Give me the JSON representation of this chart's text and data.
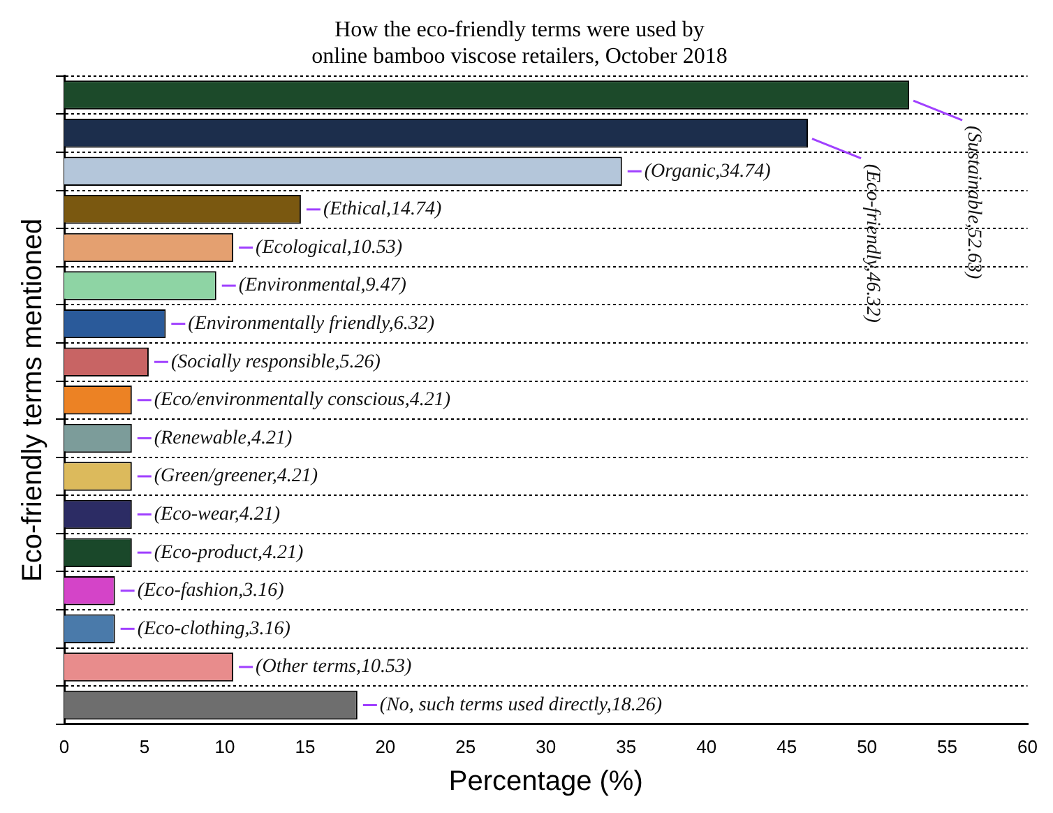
{
  "chart_data": {
    "type": "bar",
    "orientation": "horizontal",
    "title": "How the eco-friendly terms were used by\nonline bamboo viscose retailers, October 2018",
    "xlabel": "Percentage (%)",
    "ylabel": "Eco-friendly terms mentioned",
    "categories": [
      null,
      null,
      null,
      null,
      null,
      null,
      null,
      null,
      null,
      null,
      null,
      null,
      null,
      null,
      null,
      null,
      null
    ],
    "values": [
      52.63,
      46.32,
      34.74,
      14.74,
      10.53,
      9.47,
      6.32,
      5.26,
      4.21,
      4.21,
      4.21,
      4.21,
      4.21,
      3.16,
      3.16,
      10.53,
      18.26
    ],
    "value_labels": [
      "(Sustainable,52.63)",
      "(Eco-friendly,46.32)",
      "(Organic,34.74)",
      "(Ethical,14.74)",
      "(Ecological,10.53)",
      "(Environmental,9.47)",
      "(Environmentally friendly,6.32)",
      "(Socially responsible,5.26)",
      "(Eco/environmentally conscious,4.21)",
      "(Renewable,4.21)",
      "(Green/greener,4.21)",
      "(Eco-wear,4.21)",
      "(Eco-product,4.21)",
      "(Eco-fashion,3.16)",
      "(Eco-clothing,3.16)",
      "(Other terms,10.53)",
      "(No, such terms used directly,18.26)"
    ],
    "colors": [
      "#1c4a2a",
      "#1c2e4c",
      "#b4c6da",
      "#7a5810",
      "#e4a070",
      "#8ed4a4",
      "#2a5a9a",
      "#c86464",
      "#ec8224",
      "#7c9c9a",
      "#dcba5c",
      "#2c2c64",
      "#1a482a",
      "#d444c8",
      "#4a7aaa",
      "#e88c8c",
      "#6e6e6e"
    ],
    "xlim": [
      0,
      60
    ],
    "xticks": [
      0,
      5,
      10,
      15,
      20,
      25,
      30,
      35,
      40,
      45,
      50,
      55,
      60
    ],
    "grid": "y",
    "tick_labels": "x",
    "legend": false
  }
}
